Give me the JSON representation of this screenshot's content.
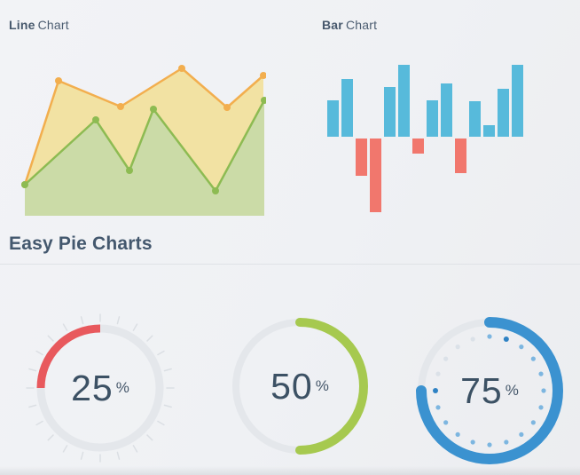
{
  "headers": {
    "line_chart_bold": "Line",
    "line_chart_rest": "Chart",
    "bar_chart_bold": "Bar",
    "bar_chart_rest": "Chart",
    "pie_section_title": "Easy Pie Charts"
  },
  "chart_data": [
    {
      "type": "area",
      "title": "Line Chart",
      "axes_visible": false,
      "legend": "none",
      "baseline_y": 188,
      "series": [
        {
          "name": "upper-series",
          "line_color": "#f2ae4e",
          "fill_color": "#f2e2a3",
          "x": [
            18,
            56,
            126,
            195,
            246,
            287
          ],
          "values": [
            35,
            152,
            123,
            166,
            122,
            158
          ]
        },
        {
          "name": "lower-series",
          "line_color": "#8dbb52",
          "fill_color": "#cbdba7",
          "x": [
            18,
            98,
            136,
            163,
            233,
            288
          ],
          "values": [
            35,
            108,
            51,
            120,
            28,
            130
          ]
        }
      ]
    },
    {
      "type": "bar",
      "title": "Bar Chart",
      "axes_visible": false,
      "legend": "none",
      "values": [
        41,
        65,
        -42,
        -83,
        56,
        81,
        -17,
        41,
        60,
        -39,
        40,
        13,
        54,
        81
      ],
      "positive_color": "#57badb",
      "negative_color": "#f1776d"
    },
    {
      "type": "gauge-set",
      "title": "Easy Pie Charts",
      "text_color": "#3c5164",
      "gauges": [
        {
          "value": 25,
          "unit": "%",
          "color": "#e8595d",
          "track_color": "#e4e7eb",
          "direction": "ccw",
          "ticks": true,
          "dots": false
        },
        {
          "value": 50,
          "unit": "%",
          "color": "#a6c94f",
          "track_color": "#e4e7eb",
          "direction": "cw",
          "ticks": false,
          "dots": false
        },
        {
          "value": 75,
          "unit": "%",
          "color": "#3b92d0",
          "track_color": "#e4e7eb",
          "direction": "cw",
          "ticks": false,
          "dots": true,
          "dot_color": "#7db6e0",
          "dot_accent_color": "#2f82c4",
          "dot_faint_color": "#dbe1e8"
        }
      ]
    }
  ]
}
